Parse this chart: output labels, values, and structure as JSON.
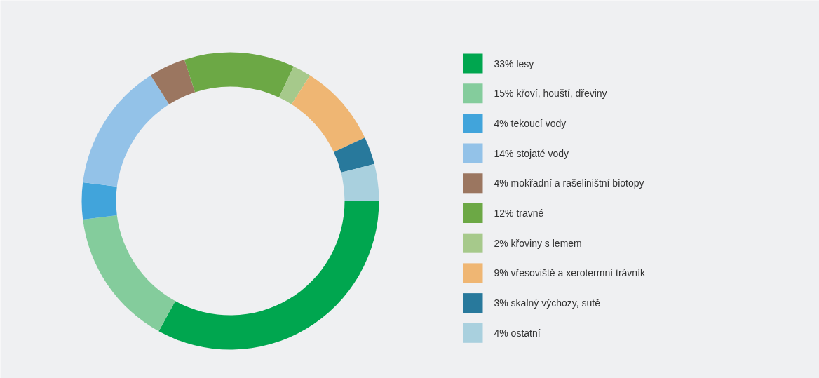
{
  "chart_data": {
    "type": "donut",
    "categories": [
      "33% lesy",
      "15% křoví, houští, dřeviny",
      "4% tekoucí vody",
      "14% stojaté vody",
      "4% mokřadní a rašeliništní biotopy",
      "12% travné",
      "2% křoviny s lemem",
      "9% vřesoviště a xerotermní trávník",
      "3% skalný výchozy, sutě",
      "4% ostatní"
    ],
    "values": [
      33,
      15,
      4,
      14,
      4,
      12,
      2,
      9,
      3,
      4
    ],
    "colors": [
      "#00a64f",
      "#84cc9c",
      "#41a4db",
      "#93c2e8",
      "#9b7660",
      "#6ca845",
      "#a6c98b",
      "#efb673",
      "#28799c",
      "#a9d0de"
    ],
    "legend": "right"
  }
}
